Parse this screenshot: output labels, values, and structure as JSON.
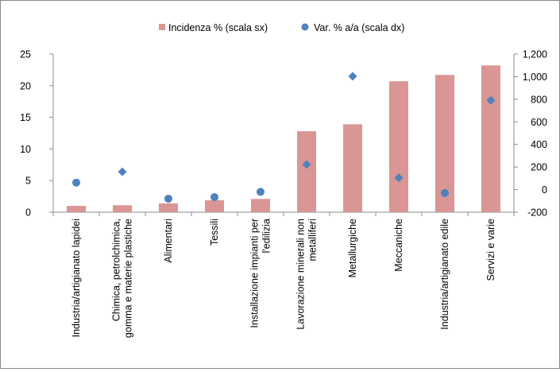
{
  "chart_data": {
    "type": "bar",
    "categories": [
      [
        "Industria/artigianato lapidei"
      ],
      [
        "Chimica, petrolchimica,",
        "gomma e materie plastiche"
      ],
      [
        "Alimentari"
      ],
      [
        "Tessili"
      ],
      [
        "Installazione impianti per",
        "l'edilizia"
      ],
      [
        "Lavorazione minerali non",
        "metalliferi"
      ],
      [
        "Metallurgiche"
      ],
      [
        "Meccaniche"
      ],
      [
        "Industria/artigianato edile"
      ],
      [
        "Servizi e varie"
      ]
    ],
    "series": [
      {
        "name": "Incidenza % (scala sx)",
        "type": "bar",
        "axis": "left",
        "color": "#d99694",
        "values": [
          1.0,
          1.1,
          1.4,
          1.9,
          2.1,
          12.8,
          13.9,
          20.7,
          21.7,
          23.2
        ]
      },
      {
        "name": "Var. % a/a (scala dx)",
        "type": "scatter",
        "axis": "right",
        "color": "#4f81bd",
        "marker_shapes": [
          "circle",
          "diamond",
          "circle",
          "circle",
          "circle",
          "diamond",
          "diamond",
          "diamond",
          "circle",
          "diamond"
        ],
        "values": [
          62,
          158,
          -80,
          -66,
          -20,
          222,
          1003,
          105,
          -30,
          790
        ]
      }
    ],
    "y_left": {
      "min": 0,
      "max": 25,
      "ticks": [
        "0",
        "5",
        "10",
        "15",
        "20",
        "25"
      ]
    },
    "y_right": {
      "min": -200,
      "max": 1200,
      "ticks": [
        "-200",
        "0",
        "200",
        "400",
        "600",
        "800",
        "1,000",
        "1,200"
      ]
    },
    "legend": {
      "placement": "top"
    },
    "grid": false
  }
}
